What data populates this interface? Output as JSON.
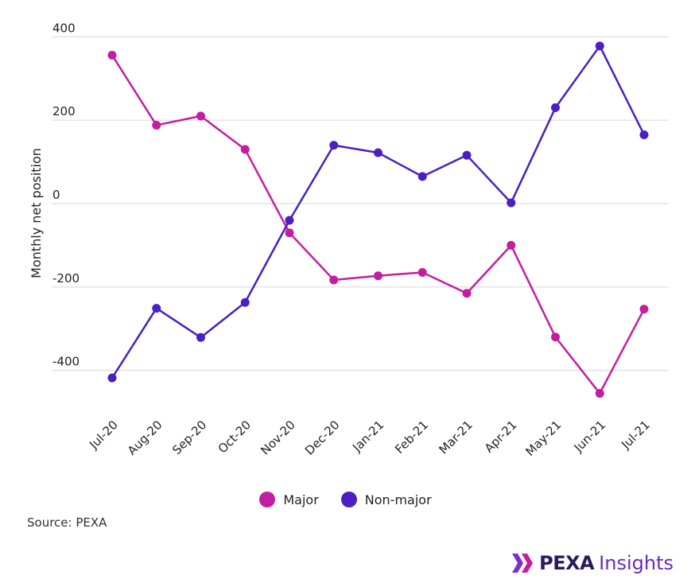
{
  "chart_data": {
    "type": "line",
    "ylabel": "Monthly net position",
    "xlabel": "",
    "categories": [
      "Jul-20",
      "Aug-20",
      "Sep-20",
      "Oct-20",
      "Nov-20",
      "Dec-20",
      "Jan-21",
      "Feb-21",
      "Mar-21",
      "Apr-21",
      "May-21",
      "Jun-21",
      "Jul-21"
    ],
    "ylim": [
      -500,
      400
    ],
    "yticks": [
      400,
      200,
      0,
      -200,
      -400
    ],
    "grid": true,
    "legend_position": "bottom",
    "series": [
      {
        "name": "Major",
        "color": "#c41ea0",
        "values": [
          356,
          188,
          210,
          130,
          -70,
          -183,
          -173,
          -165,
          -215,
          -100,
          -320,
          -455,
          -253
        ]
      },
      {
        "name": "Non-major",
        "color": "#4b1fc2",
        "values": [
          -418,
          -251,
          -321,
          -237,
          -40,
          140,
          122,
          65,
          116,
          2,
          230,
          378,
          165
        ]
      }
    ]
  },
  "source": "Source: PEXA",
  "logo": {
    "brand": "PEXA",
    "suffix": "Insights"
  }
}
